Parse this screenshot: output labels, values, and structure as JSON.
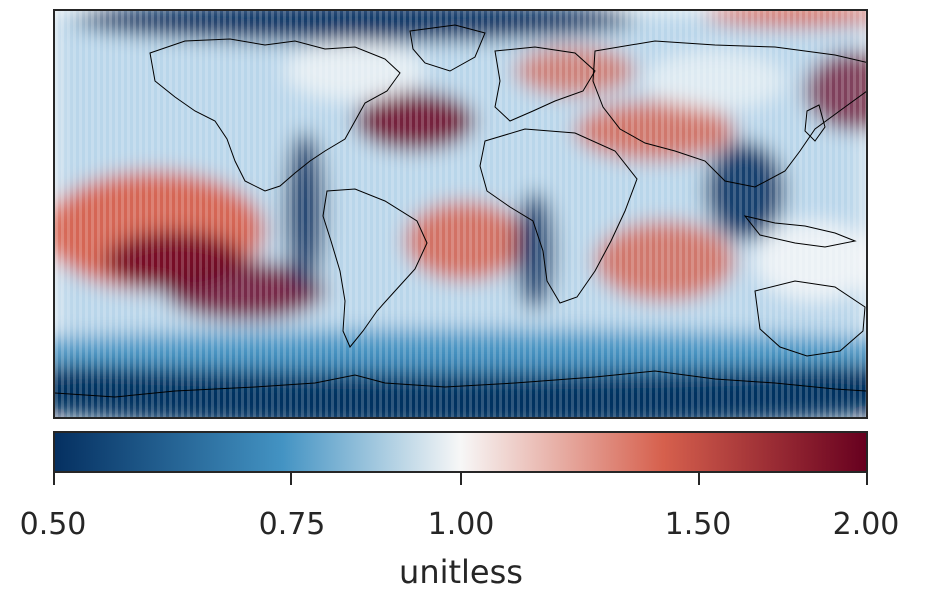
{
  "map": {
    "type": "heatmap",
    "projection": "equirectangular",
    "land_outlines": "black coastlines",
    "colormap": "RdBu_r (diverging, blue low, red high)",
    "colors": {
      "low": "#053061",
      "mid_low": "#4393c3",
      "center": "#f7f7f7",
      "mid_high": "#d6604d",
      "high": "#67001f"
    },
    "value_range": [
      0.5,
      2.0
    ],
    "scale": "log"
  },
  "colorbar": {
    "label": "unitless",
    "ticks": [
      {
        "value": 0.5,
        "label": "0.50"
      },
      {
        "value": 0.75,
        "label": "0.75"
      },
      {
        "value": 1.0,
        "label": "1.00"
      },
      {
        "value": 1.5,
        "label": "1.50"
      },
      {
        "value": 2.0,
        "label": "2.00"
      }
    ]
  }
}
